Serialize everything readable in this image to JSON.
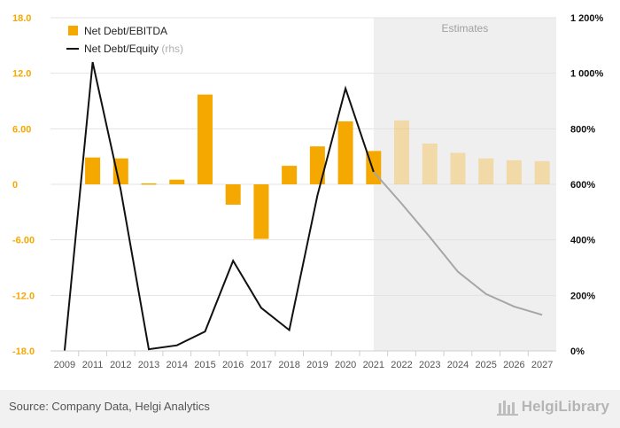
{
  "chart_data": {
    "type": "bar",
    "categories": [
      "2009",
      "2011",
      "2012",
      "2013",
      "2014",
      "2015",
      "2016",
      "2017",
      "2018",
      "2019",
      "2020",
      "2021",
      "2022",
      "2023",
      "2024",
      "2025",
      "2026",
      "2027"
    ],
    "estimates_start": "2021",
    "estimates_label": "Estimates",
    "y_left": {
      "ticks": [
        "18.0",
        "12.0",
        "6.00",
        "0",
        "-6.00",
        "-12.0",
        "-18.0"
      ],
      "min": -18,
      "max": 18
    },
    "y_right": {
      "ticks": [
        "1 200%",
        "1 000%",
        "800%",
        "600%",
        "400%",
        "200%",
        "0%"
      ],
      "min": 0,
      "max": 1200
    },
    "series": [
      {
        "name": "Net Debt/EBITDA",
        "axis": "left",
        "type": "bar",
        "color": "#f5a800",
        "values": [
          null,
          2.9,
          2.8,
          0.1,
          0.5,
          9.7,
          -2.2,
          -5.9,
          2.0,
          4.1,
          6.8,
          3.6,
          6.9,
          4.4,
          3.4,
          2.8,
          2.6,
          2.5
        ]
      },
      {
        "name": "Net Debt/Equity",
        "suffix": "(rhs)",
        "axis": "right",
        "type": "line",
        "color": "#111111",
        "estimate_color": "#a6a6a6",
        "values": [
          0,
          1040,
          580,
          6,
          20,
          70,
          325,
          155,
          75,
          560,
          945,
          645,
          530,
          410,
          285,
          205,
          160,
          130
        ]
      }
    ],
    "grid": true,
    "legend_position": "top-left"
  },
  "footer": {
    "source": "Source: Company Data, Helgi Analytics",
    "brand": "HelgiLibrary"
  }
}
